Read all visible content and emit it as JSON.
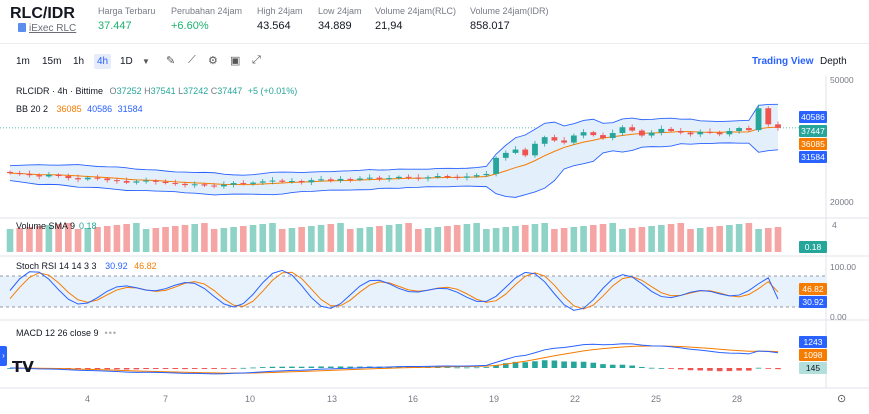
{
  "header": {
    "pair": "RLC/IDR",
    "coin_name": "iExec RLC",
    "stats": [
      {
        "label": "Harga Terbaru",
        "value": "37.447",
        "color": "green"
      },
      {
        "label": "Perubahan 24jam",
        "value": "+6.60%",
        "color": "green"
      },
      {
        "label": "High 24jam",
        "value": "43.564",
        "color": "dark"
      },
      {
        "label": "Low 24jam",
        "value": "34.889",
        "color": "dark"
      },
      {
        "label": "Volume 24jam(RLC)",
        "value": "21,94",
        "color": "dark"
      },
      {
        "label": "Volume 24jam(IDR)",
        "value": "858.017",
        "color": "dark"
      }
    ]
  },
  "toolbar": {
    "timeframes": [
      "1m",
      "15m",
      "1h",
      "4h",
      "1D"
    ],
    "active": "4h",
    "tab_trading": "Trading View",
    "tab_depth": "Depth"
  },
  "legend": {
    "symbol": "RLCIDR · 4h · Bittime",
    "o_label": "O",
    "o": "37252",
    "h_label": "H",
    "h": "37541",
    "l_label": "L",
    "l": "37242",
    "c_label": "C",
    "c": "37447",
    "change": "+5 (+0.01%)",
    "bb_label": "BB 20 2",
    "bb_mid": "36085",
    "bb_up": "40586",
    "bb_low": "31584",
    "vol_label": "Volume SMA 9",
    "vol_val": "0.18",
    "stoch_label": "Stoch RSI 14 14 3 3",
    "stoch_k": "30.92",
    "stoch_d": "46.82",
    "macd_label": "MACD 12 26 close 9"
  },
  "price_axis": {
    "ticks": [
      "50000",
      "20000"
    ],
    "tags": [
      {
        "text": "40586",
        "color": "#2962ff"
      },
      {
        "text": "37447",
        "color": "#26a69a"
      },
      {
        "text": "36085",
        "color": "#f57c00"
      },
      {
        "text": "31584",
        "color": "#2962ff"
      }
    ]
  },
  "volume_axis": {
    "tick": "4",
    "tag": "0.18"
  },
  "stoch_axis": {
    "ticks": [
      "100.00",
      "0.00"
    ],
    "tag_d": "46.82",
    "tag_k": "30.92"
  },
  "macd_axis": {
    "tag_macd": "1243",
    "tag_signal": "1098",
    "tag_hist": "145"
  },
  "x_axis": {
    "labels": [
      "4",
      "7",
      "10",
      "13",
      "16",
      "19",
      "22",
      "25",
      "28"
    ]
  },
  "chart_data": {
    "type": "candlestick",
    "title": "RLCIDR · 4h · Bittime",
    "ylim": [
      20000,
      50000
    ],
    "x_labels": [
      "4",
      "7",
      "10",
      "13",
      "16",
      "19",
      "22",
      "25",
      "28"
    ],
    "last": {
      "open": 37252,
      "high": 37541,
      "low": 37242,
      "close": 37447
    },
    "bollinger": {
      "upper": 40586,
      "middle": 36085,
      "lower": 31584
    },
    "close_series": [
      26500,
      26300,
      26000,
      25700,
      26100,
      25800,
      25300,
      25000,
      25400,
      25200,
      24800,
      24600,
      24200,
      24500,
      24700,
      24400,
      24100,
      23900,
      23600,
      23800,
      23500,
      23300,
      23700,
      24100,
      23900,
      24200,
      24500,
      24700,
      24400,
      24600,
      24300,
      24800,
      25000,
      24700,
      25100,
      24900,
      25200,
      25400,
      25100,
      25300,
      25600,
      25400,
      25200,
      25500,
      25800,
      25600,
      25400,
      25700,
      26000,
      26300,
      30200,
      31400,
      32200,
      30800,
      33600,
      35200,
      34400,
      33900,
      35600,
      36400,
      35700,
      35000,
      36200,
      37600,
      36800,
      35600,
      36300,
      37200,
      36700,
      36300,
      35900,
      36500,
      36300,
      35900,
      36700,
      37400,
      36900,
      42200,
      38300,
      37447
    ],
    "volume_sma": 0.18,
    "stoch_rsi": {
      "k": 30.92,
      "d": 46.82
    },
    "macd": {
      "macd": 1243,
      "signal": 1098,
      "histogram": 145
    }
  }
}
